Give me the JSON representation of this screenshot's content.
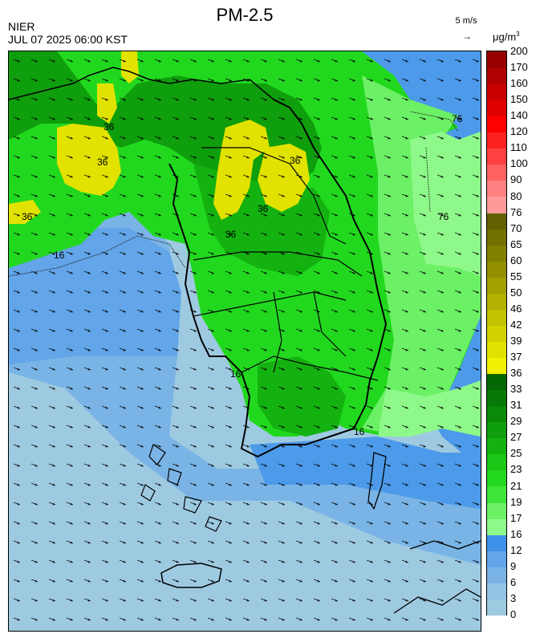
{
  "header": {
    "title": "PM-2.5",
    "agency": "NIER",
    "timestamp": "JUL 07 2025 06:00 KST",
    "wind_reference": "5 m/s",
    "unit_prefix": "μg/m",
    "unit_exp": "3"
  },
  "colorbar": {
    "levels": [
      {
        "label": "0",
        "color": "#9ecae1"
      },
      {
        "label": "3",
        "color": "#93c4e4"
      },
      {
        "label": "6",
        "color": "#7ab4e6"
      },
      {
        "label": "9",
        "color": "#62a5e8"
      },
      {
        "label": "12",
        "color": "#3f92ea"
      },
      {
        "label": "16",
        "color": "#8ef98a"
      },
      {
        "label": "17",
        "color": "#6cf066"
      },
      {
        "label": "19",
        "color": "#3ee63a"
      },
      {
        "label": "21",
        "color": "#22d81f"
      },
      {
        "label": "23",
        "color": "#1ac616"
      },
      {
        "label": "25",
        "color": "#14b211"
      },
      {
        "label": "27",
        "color": "#0f9e0c"
      },
      {
        "label": "29",
        "color": "#0a8a08"
      },
      {
        "label": "31",
        "color": "#067806"
      },
      {
        "label": "33",
        "color": "#046804"
      },
      {
        "label": "36",
        "color": "#f0f000"
      },
      {
        "label": "37",
        "color": "#e2e200"
      },
      {
        "label": "39",
        "color": "#d2d200"
      },
      {
        "label": "42",
        "color": "#c2c200"
      },
      {
        "label": "46",
        "color": "#b2b000"
      },
      {
        "label": "50",
        "color": "#a2a000"
      },
      {
        "label": "55",
        "color": "#929000"
      },
      {
        "label": "60",
        "color": "#828000"
      },
      {
        "label": "65",
        "color": "#727000"
      },
      {
        "label": "70",
        "color": "#626000"
      },
      {
        "label": "76",
        "color": "#ff9a9a"
      },
      {
        "label": "80",
        "color": "#ff8080"
      },
      {
        "label": "90",
        "color": "#ff6060"
      },
      {
        "label": "100",
        "color": "#ff4040"
      },
      {
        "label": "110",
        "color": "#ff2020"
      },
      {
        "label": "120",
        "color": "#ff0000"
      },
      {
        "label": "140",
        "color": "#e00000"
      },
      {
        "label": "150",
        "color": "#c80000"
      },
      {
        "label": "160",
        "color": "#b00000"
      },
      {
        "label": "170",
        "color": "#980000"
      },
      {
        "label": "200",
        "color": "#800000"
      }
    ]
  },
  "contour_labels": [
    "36",
    "36",
    "36",
    "36",
    "36",
    "36",
    "16",
    "76",
    "76",
    "16",
    "16"
  ],
  "colors": {
    "sea_low": "#9ecae1",
    "sea_mid": "#62a5e8",
    "land_green": "#22d81f",
    "dark_green": "#0a8a08",
    "light_green": "#8ef98a",
    "yellow": "#e2e200"
  }
}
